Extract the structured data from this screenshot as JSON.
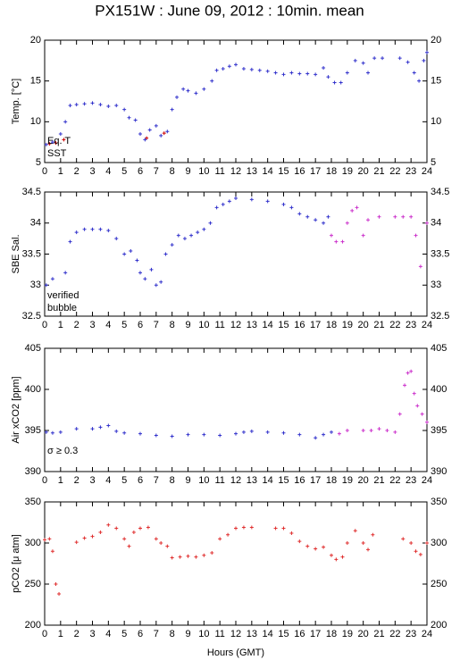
{
  "chart_data": [
    {
      "type": "scatter",
      "title": "PX151W : June 09, 2012 : 10min. mean",
      "ylabel": "Temp. [°C]",
      "xlim": [
        0,
        24
      ],
      "xticks": [
        0,
        1,
        2,
        3,
        4,
        5,
        6,
        7,
        8,
        9,
        10,
        11,
        12,
        13,
        14,
        15,
        16,
        17,
        18,
        19,
        20,
        21,
        22,
        23,
        24
      ],
      "ylim": [
        5,
        20
      ],
      "yticks": [
        5,
        10,
        15,
        20
      ],
      "series": [
        {
          "name": "Eq. T",
          "color": "#cc0000",
          "x": [
            0.3,
            0.7,
            1.2,
            6.4,
            7.5
          ],
          "values": [
            7.3,
            7.4,
            7.8,
            8.0,
            8.6
          ]
        },
        {
          "name": "SST",
          "color": "#3333cc",
          "x": [
            0.1,
            0.5,
            1.0,
            1.3,
            1.6,
            2,
            2.5,
            3,
            3.5,
            4,
            4.5,
            5,
            5.3,
            5.7,
            6,
            6.3,
            6.6,
            7,
            7.3,
            7.7,
            8,
            8.3,
            8.7,
            9,
            9.5,
            10,
            10.5,
            10.8,
            11.2,
            11.6,
            12,
            12.5,
            13,
            13.5,
            14,
            14.5,
            15,
            15.5,
            16,
            16.5,
            17,
            17.5,
            17.8,
            18.2,
            18.6,
            19,
            19.5,
            20,
            20.3,
            20.7,
            21.2,
            22.3,
            22.8,
            23.2,
            23.5,
            23.8,
            24
          ],
          "values": [
            7.2,
            7.5,
            8.5,
            10,
            12,
            12.1,
            12.2,
            12.3,
            12.1,
            11.9,
            12.0,
            11.5,
            10.5,
            10.2,
            8.5,
            7.8,
            9,
            9.5,
            8.3,
            8.8,
            11.5,
            13,
            14,
            13.8,
            13.5,
            14,
            15,
            16.3,
            16.5,
            16.8,
            17,
            16.5,
            16.4,
            16.3,
            16.2,
            16,
            15.8,
            16,
            15.9,
            15.9,
            15.8,
            16.6,
            15.5,
            14.8,
            14.8,
            16,
            17.5,
            17.2,
            16,
            17.8,
            17.8,
            17.8,
            17.3,
            16,
            15,
            17.5,
            18.5
          ]
        }
      ]
    },
    {
      "type": "scatter",
      "ylabel": "SBE Sal.",
      "xlim": [
        0,
        24
      ],
      "xticks": [
        0,
        1,
        2,
        3,
        4,
        5,
        6,
        7,
        8,
        9,
        10,
        11,
        12,
        13,
        14,
        15,
        16,
        17,
        18,
        19,
        20,
        21,
        22,
        23,
        24
      ],
      "ylim": [
        32.5,
        34.5
      ],
      "yticks": [
        32.5,
        33,
        33.5,
        34,
        34.5
      ],
      "series": [
        {
          "name": "verified",
          "color": "#3333cc",
          "x": [
            0.1,
            0.5,
            1.3,
            1.6,
            2,
            2.5,
            3,
            3.5,
            4,
            4.5,
            5,
            5.4,
            5.8,
            6,
            6.3,
            6.7,
            7,
            7.3,
            7.6,
            8,
            8.4,
            8.8,
            9.2,
            9.6,
            10,
            10.4,
            10.8,
            11.2,
            11.6,
            12,
            13,
            14,
            15,
            15.5,
            16,
            16.5,
            17,
            17.5,
            17.8
          ],
          "values": [
            33.0,
            33.1,
            33.2,
            33.7,
            33.85,
            33.9,
            33.9,
            33.9,
            33.88,
            33.75,
            33.5,
            33.55,
            33.4,
            33.2,
            33.1,
            33.25,
            33.0,
            33.05,
            33.5,
            33.65,
            33.8,
            33.75,
            33.8,
            33.85,
            33.9,
            34.0,
            34.25,
            34.3,
            34.35,
            34.4,
            34.38,
            34.35,
            34.3,
            34.25,
            34.15,
            34.1,
            34.05,
            34.0,
            34.1
          ]
        },
        {
          "name": "bubble",
          "color": "#cc33cc",
          "x": [
            18,
            18.3,
            18.7,
            19,
            19.3,
            19.6,
            20,
            20.3,
            21,
            22,
            22.5,
            23,
            23.3,
            23.6,
            24
          ],
          "values": [
            33.8,
            33.7,
            33.7,
            34.0,
            34.2,
            34.25,
            33.8,
            34.05,
            34.1,
            34.1,
            34.1,
            34.1,
            33.8,
            33.3,
            34.0
          ]
        }
      ]
    },
    {
      "type": "scatter",
      "ylabel": "Air xCO2 [ppm]",
      "xlim": [
        0,
        24
      ],
      "xticks": [
        0,
        1,
        2,
        3,
        4,
        5,
        6,
        7,
        8,
        9,
        10,
        11,
        12,
        13,
        14,
        15,
        16,
        17,
        18,
        19,
        20,
        21,
        22,
        23,
        24
      ],
      "ylim": [
        390,
        405
      ],
      "yticks": [
        390,
        395,
        400,
        405
      ],
      "series": [
        {
          "color": "#3333cc",
          "x": [
            0.1,
            0.5,
            1,
            2,
            3,
            3.5,
            4,
            4.5,
            5,
            6,
            7,
            8,
            9,
            10,
            11,
            12,
            12.5,
            13,
            14,
            15,
            16,
            17,
            17.5,
            18
          ],
          "values": [
            394.8,
            394.7,
            394.8,
            395.2,
            395.2,
            395.4,
            395.6,
            394.9,
            394.7,
            394.6,
            394.4,
            394.3,
            394.5,
            394.5,
            394.4,
            394.6,
            394.8,
            394.9,
            394.8,
            394.7,
            394.5,
            394.1,
            394.5,
            394.8
          ]
        },
        {
          "name": "σ ≥ 0.3",
          "color": "#cc33cc",
          "x": [
            18.5,
            19,
            20,
            20.5,
            21,
            21.5,
            22,
            22.3,
            22.6,
            22.8,
            23,
            23.2,
            23.4,
            23.7,
            24
          ],
          "values": [
            394.6,
            395.0,
            395.0,
            395.0,
            395.2,
            395.0,
            394.8,
            397,
            400.5,
            402,
            402.2,
            399.5,
            398,
            397,
            396
          ]
        }
      ]
    },
    {
      "type": "scatter",
      "ylabel": "pCO2 [μ atm]",
      "xlabel": "Hours (GMT)",
      "xlim": [
        0,
        24
      ],
      "xticks": [
        0,
        1,
        2,
        3,
        4,
        5,
        6,
        7,
        8,
        9,
        10,
        11,
        12,
        13,
        14,
        15,
        16,
        17,
        18,
        19,
        20,
        21,
        22,
        23,
        24
      ],
      "ylim": [
        200,
        350
      ],
      "yticks": [
        200,
        250,
        300,
        350
      ],
      "series": [
        {
          "color": "#e03030",
          "x": [
            0,
            0.3,
            0.5,
            0.7,
            0.9,
            2,
            2.5,
            3,
            3.5,
            4,
            4.5,
            5,
            5.3,
            5.6,
            6,
            6.5,
            7,
            7.3,
            7.7,
            8,
            8.5,
            9,
            9.5,
            10,
            10.5,
            11,
            11.5,
            12,
            12.5,
            13,
            14.5,
            15,
            15.5,
            16,
            16.5,
            17,
            17.5,
            18,
            18.3,
            18.7,
            19,
            19.5,
            20,
            20.3,
            20.6,
            22.5,
            23,
            23.3,
            23.6,
            24
          ],
          "values": [
            304,
            305,
            290,
            250,
            238,
            301,
            306,
            308,
            313,
            322,
            318,
            305,
            296,
            313,
            318,
            319,
            305,
            300,
            296,
            282,
            283,
            284,
            283,
            285,
            288,
            305,
            310,
            318,
            319,
            319,
            318,
            318,
            312,
            302,
            296,
            293,
            295,
            285,
            280,
            283,
            300,
            315,
            300,
            292,
            310,
            305,
            300,
            290,
            286,
            300
          ]
        }
      ]
    }
  ]
}
